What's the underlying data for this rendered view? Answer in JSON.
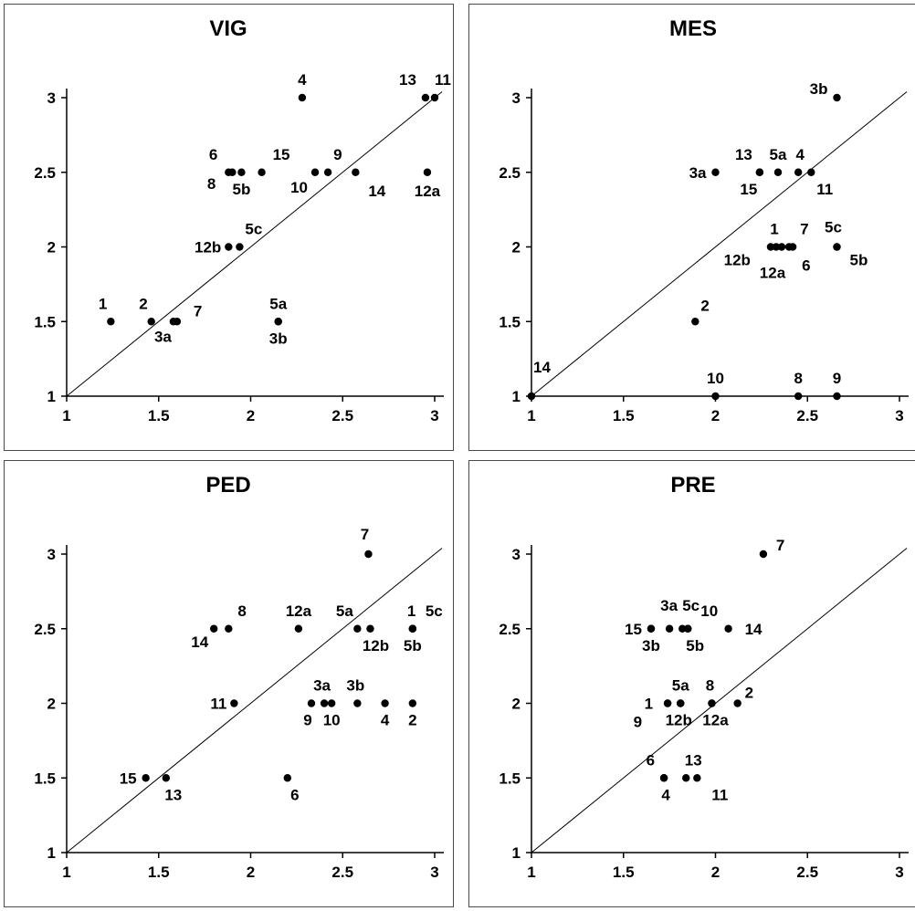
{
  "chart_data": [
    {
      "type": "scatter",
      "title": "VIG",
      "xlim": [
        1,
        3
      ],
      "ylim": [
        1,
        3
      ],
      "xticks": [
        "1",
        "1.5",
        "2",
        "2.5",
        "3"
      ],
      "yticks": [
        "1",
        "1.5",
        "2",
        "2.5",
        "3"
      ],
      "reference_line": "y = x",
      "grid": false,
      "points": [
        {
          "label": "1",
          "x": 1.24,
          "y": 1.5
        },
        {
          "label": "2",
          "x": 1.46,
          "y": 1.5
        },
        {
          "label": "3a",
          "x": 1.58,
          "y": 1.5
        },
        {
          "label": "7",
          "x": 1.6,
          "y": 1.5
        },
        {
          "label": "5a",
          "x": 2.15,
          "y": 1.5
        },
        {
          "label": "3b",
          "x": 2.15,
          "y": 1.5
        },
        {
          "label": "12b",
          "x": 1.88,
          "y": 2.0
        },
        {
          "label": "5c",
          "x": 1.94,
          "y": 2.0
        },
        {
          "label": "6",
          "x": 1.88,
          "y": 2.5
        },
        {
          "label": "8",
          "x": 1.9,
          "y": 2.5
        },
        {
          "label": "5b",
          "x": 1.95,
          "y": 2.5
        },
        {
          "label": "15",
          "x": 2.06,
          "y": 2.5
        },
        {
          "label": "10",
          "x": 2.35,
          "y": 2.5
        },
        {
          "label": "9",
          "x": 2.42,
          "y": 2.5
        },
        {
          "label": "14",
          "x": 2.57,
          "y": 2.5
        },
        {
          "label": "12a",
          "x": 2.96,
          "y": 2.5
        },
        {
          "label": "4",
          "x": 2.28,
          "y": 3.0
        },
        {
          "label": "13",
          "x": 2.95,
          "y": 3.0
        },
        {
          "label": "11",
          "x": 3.0,
          "y": 3.0
        }
      ]
    },
    {
      "type": "scatter",
      "title": "MES",
      "xlim": [
        1,
        3
      ],
      "ylim": [
        1,
        3
      ],
      "xticks": [
        "1",
        "1.5",
        "2",
        "2.5",
        "3"
      ],
      "yticks": [
        "1",
        "1.5",
        "2",
        "2.5",
        "3"
      ],
      "reference_line": "y = x",
      "grid": false,
      "points": [
        {
          "label": "14",
          "x": 1.0,
          "y": 1.0
        },
        {
          "label": "10",
          "x": 2.0,
          "y": 1.0
        },
        {
          "label": "8",
          "x": 2.45,
          "y": 1.0
        },
        {
          "label": "9",
          "x": 2.66,
          "y": 1.0
        },
        {
          "label": "2",
          "x": 1.89,
          "y": 1.5
        },
        {
          "label": "12b",
          "x": 2.3,
          "y": 2.0
        },
        {
          "label": "12a",
          "x": 2.33,
          "y": 2.0
        },
        {
          "label": "1",
          "x": 2.36,
          "y": 2.0
        },
        {
          "label": "6",
          "x": 2.4,
          "y": 2.0
        },
        {
          "label": "7",
          "x": 2.42,
          "y": 2.0
        },
        {
          "label": "5c",
          "x": 2.66,
          "y": 2.0
        },
        {
          "label": "5b",
          "x": 2.66,
          "y": 2.0
        },
        {
          "label": "3a",
          "x": 2.0,
          "y": 2.5
        },
        {
          "label": "13",
          "x": 2.24,
          "y": 2.5
        },
        {
          "label": "15",
          "x": 2.24,
          "y": 2.5
        },
        {
          "label": "5a",
          "x": 2.34,
          "y": 2.5
        },
        {
          "label": "4",
          "x": 2.45,
          "y": 2.5
        },
        {
          "label": "11",
          "x": 2.52,
          "y": 2.5
        },
        {
          "label": "3b",
          "x": 2.66,
          "y": 3.0
        }
      ]
    },
    {
      "type": "scatter",
      "title": "PED",
      "xlim": [
        1,
        3
      ],
      "ylim": [
        1,
        3
      ],
      "xticks": [
        "1",
        "1.5",
        "2",
        "2.5",
        "3"
      ],
      "yticks": [
        "1",
        "1.5",
        "2",
        "2.5",
        "3"
      ],
      "reference_line": "y = x",
      "grid": false,
      "points": [
        {
          "label": "15",
          "x": 1.43,
          "y": 1.5
        },
        {
          "label": "13",
          "x": 1.54,
          "y": 1.5
        },
        {
          "label": "6",
          "x": 2.2,
          "y": 1.5
        },
        {
          "label": "11",
          "x": 1.91,
          "y": 2.0
        },
        {
          "label": "9",
          "x": 2.33,
          "y": 2.0
        },
        {
          "label": "3a",
          "x": 2.4,
          "y": 2.0
        },
        {
          "label": "10",
          "x": 2.44,
          "y": 2.0
        },
        {
          "label": "3b",
          "x": 2.58,
          "y": 2.0
        },
        {
          "label": "4",
          "x": 2.73,
          "y": 2.0
        },
        {
          "label": "2",
          "x": 2.88,
          "y": 2.0
        },
        {
          "label": "14",
          "x": 1.8,
          "y": 2.5
        },
        {
          "label": "8",
          "x": 1.88,
          "y": 2.5
        },
        {
          "label": "12a",
          "x": 2.26,
          "y": 2.5
        },
        {
          "label": "5a",
          "x": 2.58,
          "y": 2.5
        },
        {
          "label": "12b",
          "x": 2.65,
          "y": 2.5
        },
        {
          "label": "1",
          "x": 2.88,
          "y": 2.5
        },
        {
          "label": "5c",
          "x": 2.88,
          "y": 2.5
        },
        {
          "label": "5b",
          "x": 2.88,
          "y": 2.5
        },
        {
          "label": "7",
          "x": 2.64,
          "y": 3.0
        }
      ]
    },
    {
      "type": "scatter",
      "title": "PRE",
      "xlim": [
        1,
        3
      ],
      "ylim": [
        1,
        3
      ],
      "xticks": [
        "1",
        "1.5",
        "2",
        "2.5",
        "3"
      ],
      "yticks": [
        "1",
        "1.5",
        "2",
        "2.5",
        "3"
      ],
      "reference_line": "y = x",
      "grid": false,
      "points": [
        {
          "label": "6",
          "x": 1.72,
          "y": 1.5
        },
        {
          "label": "4",
          "x": 1.72,
          "y": 1.5
        },
        {
          "label": "13",
          "x": 1.84,
          "y": 1.5
        },
        {
          "label": "11",
          "x": 1.9,
          "y": 1.5
        },
        {
          "label": "1",
          "x": 1.74,
          "y": 2.0
        },
        {
          "label": "9",
          "x": 1.74,
          "y": 2.0
        },
        {
          "label": "5a",
          "x": 1.81,
          "y": 2.0
        },
        {
          "label": "12b",
          "x": 1.81,
          "y": 2.0
        },
        {
          "label": "8",
          "x": 1.98,
          "y": 2.0
        },
        {
          "label": "12a",
          "x": 1.98,
          "y": 2.0
        },
        {
          "label": "2",
          "x": 2.12,
          "y": 2.0
        },
        {
          "label": "15",
          "x": 1.65,
          "y": 2.5
        },
        {
          "label": "3b",
          "x": 1.65,
          "y": 2.5
        },
        {
          "label": "3a",
          "x": 1.75,
          "y": 2.5
        },
        {
          "label": "5c",
          "x": 1.82,
          "y": 2.5
        },
        {
          "label": "5b",
          "x": 1.85,
          "y": 2.5
        },
        {
          "label": "10",
          "x": 1.85,
          "y": 2.5
        },
        {
          "label": "14",
          "x": 2.07,
          "y": 2.5
        },
        {
          "label": "7",
          "x": 2.26,
          "y": 3.0
        }
      ]
    }
  ]
}
